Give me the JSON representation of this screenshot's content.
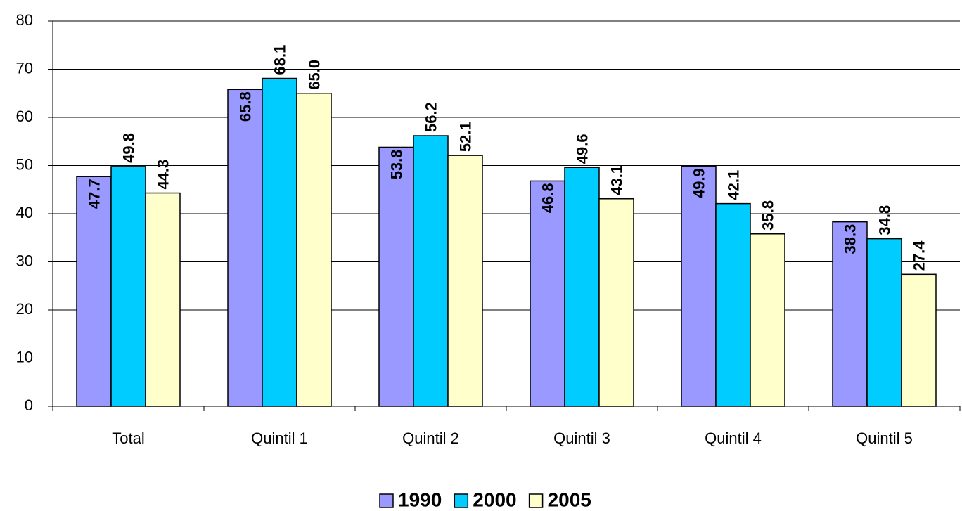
{
  "chart_data": {
    "type": "bar",
    "categories": [
      "Total",
      "Quintil 1",
      "Quintil 2",
      "Quintil 3",
      "Quintil 4",
      "Quintil 5"
    ],
    "series": [
      {
        "name": "1990",
        "color": "#9999ff",
        "values": [
          47.7,
          65.8,
          53.8,
          46.8,
          49.9,
          38.3
        ],
        "value_labels": [
          "47.7",
          "65.8",
          "53.8",
          "46.8",
          "49.9",
          "38.3"
        ],
        "label_position": "inside"
      },
      {
        "name": "2000",
        "color": "#00ccff",
        "values": [
          49.8,
          68.1,
          56.2,
          49.6,
          42.1,
          34.8
        ],
        "value_labels": [
          "49.8",
          "68.1",
          "56.2",
          "49.6",
          "42.1",
          "34.8"
        ],
        "label_position": "outside"
      },
      {
        "name": "2005",
        "color": "#ffffcc",
        "values": [
          44.3,
          65.0,
          52.1,
          43.1,
          35.8,
          27.4
        ],
        "value_labels": [
          "44.3",
          "65.0",
          "52.1",
          "43.1",
          "35.8",
          "27.4"
        ],
        "label_position": "outside"
      }
    ],
    "ylim": [
      0,
      80
    ],
    "yticks": [
      0,
      10,
      20,
      30,
      40,
      50,
      60,
      70,
      80
    ],
    "grid": true,
    "legend": "bottom"
  }
}
